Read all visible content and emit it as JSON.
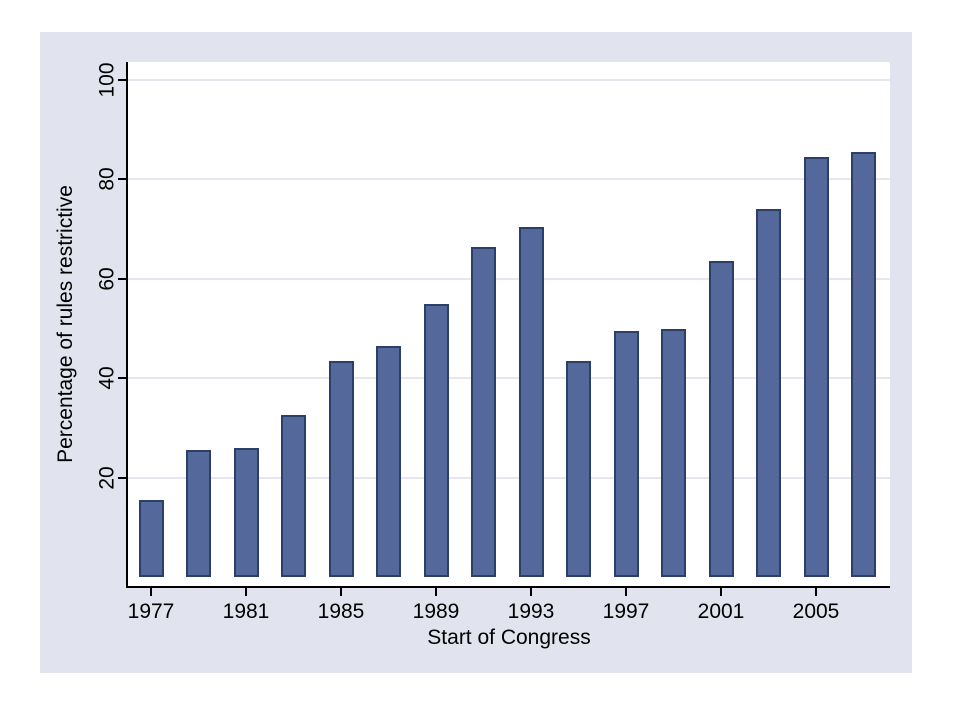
{
  "chart_data": {
    "type": "bar",
    "title": "",
    "xlabel": "Start of Congress",
    "ylabel": "Percentage of rules restrictive",
    "categories": [
      "1977",
      "1979",
      "1981",
      "1983",
      "1985",
      "1987",
      "1989",
      "1991",
      "1993",
      "1995",
      "1997",
      "1999",
      "2001",
      "2003",
      "2005",
      "2007"
    ],
    "values": [
      15.5,
      25.5,
      26,
      32.5,
      43.5,
      46.5,
      55,
      66.5,
      70.5,
      43.5,
      49.5,
      50,
      63.5,
      74,
      84.5,
      85.5
    ],
    "x_tick_labels": [
      "1977",
      "1981",
      "1985",
      "1989",
      "1993",
      "1997",
      "2001",
      "2005"
    ],
    "x_tick_every_n_bars": 2,
    "y_ticks": [
      20,
      40,
      60,
      80,
      100
    ],
    "ylim": [
      0,
      103
    ],
    "grid": true,
    "legend": "none",
    "colors": {
      "canvas_bg": "#e1e4ee",
      "plot_bg": "#ffffff",
      "bar_fill": "#55689b",
      "bar_border": "#2b3f69",
      "gridline": "#e5e7f0",
      "axis_line": "#000000",
      "text": "#000000"
    }
  }
}
